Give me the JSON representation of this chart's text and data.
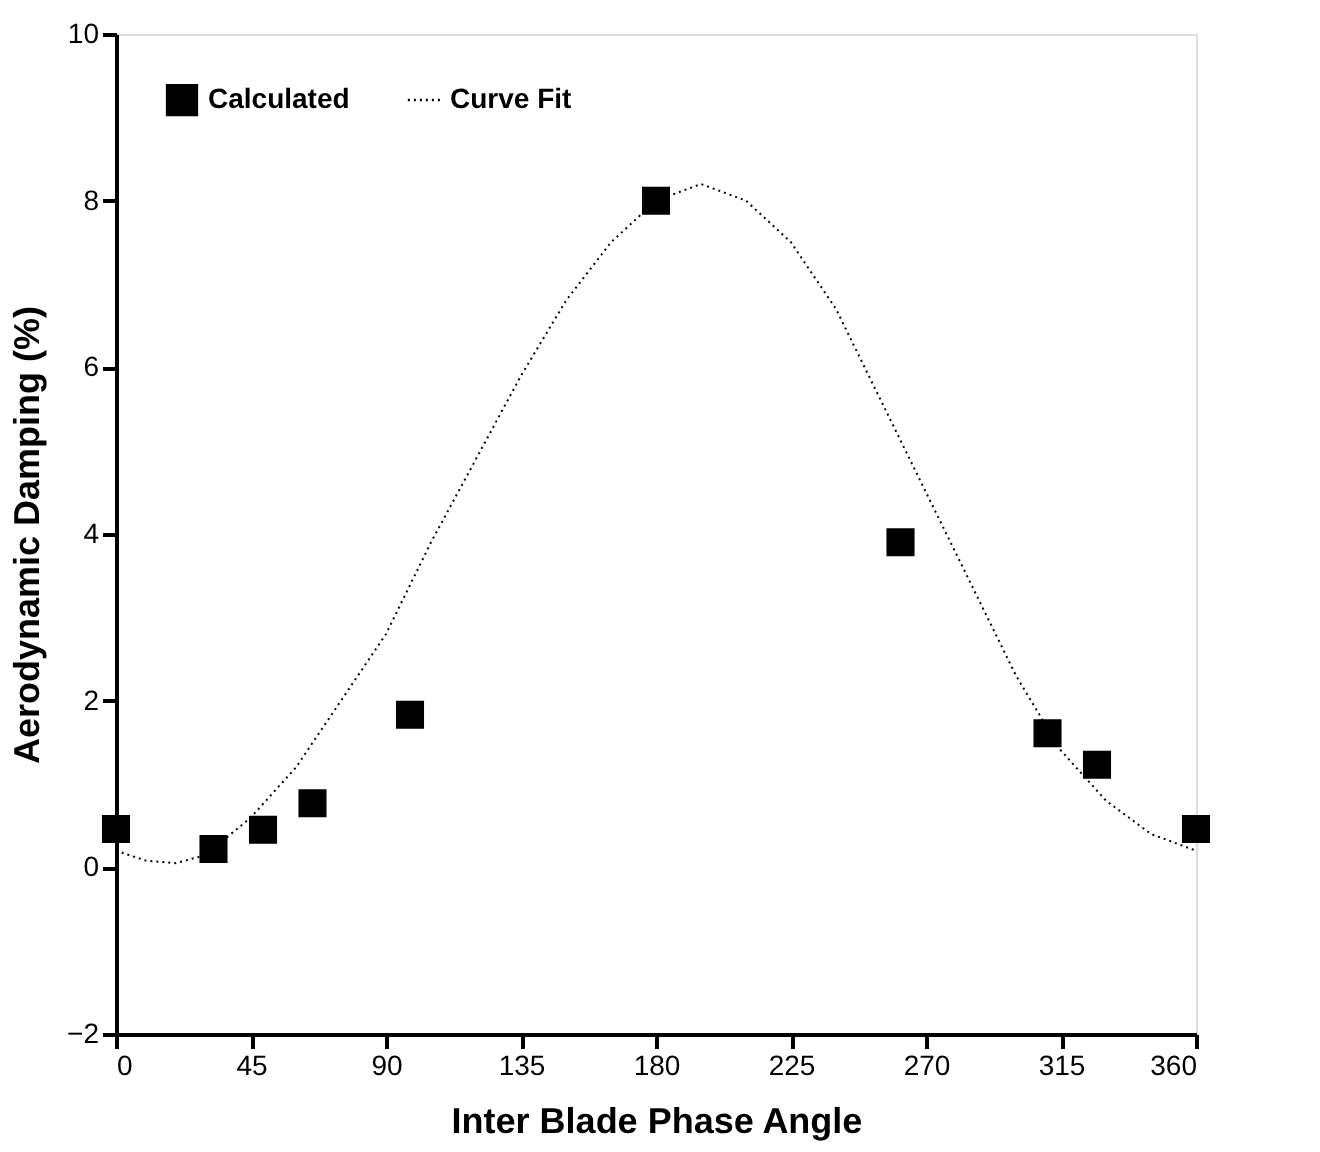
{
  "chart_data": {
    "type": "scatter",
    "xlabel": "Inter Blade Phase Angle",
    "ylabel": "Aerodynamic Damping (%)",
    "xlim": [
      0,
      360
    ],
    "xticks": [
      0,
      45,
      90,
      135,
      180,
      225,
      270,
      315,
      360
    ],
    "ylim": [
      -2,
      10
    ],
    "yticks": [
      -2,
      0,
      2,
      4,
      6,
      8,
      10
    ],
    "grid": false,
    "legend": "top left",
    "series": [
      {
        "name": "Calculated",
        "marker": "square",
        "color": "#000000",
        "x": [
          0,
          32.5,
          49,
          65.5,
          98,
          180,
          261.5,
          310.5,
          327,
          360
        ],
        "values": [
          0.46,
          0.22,
          0.45,
          0.77,
          1.83,
          8.0,
          3.9,
          1.61,
          1.23,
          0.46
        ]
      },
      {
        "name": "Curve Fit",
        "type": "line",
        "marker": "none",
        "line_style": "dotted",
        "color": "#000000",
        "x": [
          0,
          10,
          20,
          30,
          45,
          60,
          75,
          90,
          105,
          120,
          135,
          150,
          165,
          180,
          195,
          210,
          225,
          240,
          255,
          270,
          285,
          300,
          315,
          330,
          345,
          360
        ],
        "values": [
          0.2,
          0.08,
          0.05,
          0.15,
          0.6,
          1.2,
          2.0,
          2.8,
          3.9,
          4.9,
          5.9,
          6.8,
          7.5,
          8.0,
          8.2,
          8.0,
          7.5,
          6.7,
          5.6,
          4.5,
          3.4,
          2.3,
          1.4,
          0.8,
          0.4,
          0.2
        ]
      }
    ]
  }
}
